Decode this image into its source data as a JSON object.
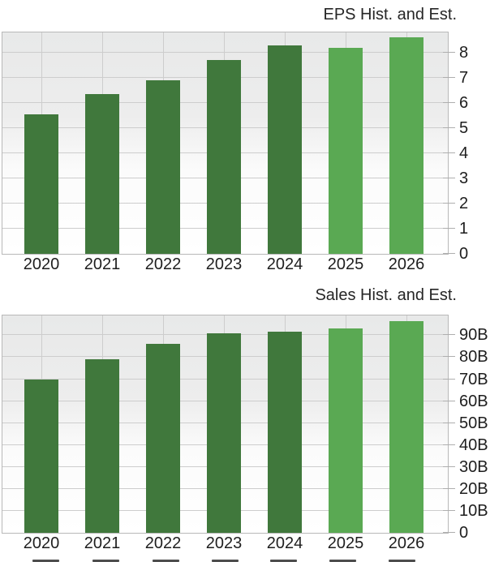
{
  "chart_data": [
    {
      "type": "bar",
      "title": "EPS Hist. and Est.",
      "categories": [
        "2020",
        "2021",
        "2022",
        "2023",
        "2024",
        "2025",
        "2026"
      ],
      "values": [
        5.55,
        6.35,
        6.9,
        7.7,
        8.3,
        8.2,
        8.6
      ],
      "segments": [
        "historical",
        "historical",
        "historical",
        "historical",
        "historical",
        "estimate",
        "estimate"
      ],
      "xlabel": "",
      "ylabel": "",
      "ylim": [
        0,
        8.8
      ],
      "yticks": [
        0,
        1,
        2,
        3,
        4,
        5,
        6,
        7,
        8
      ],
      "ytick_labels": [
        "0",
        "1",
        "2",
        "3",
        "4",
        "5",
        "6",
        "7",
        "8"
      ],
      "grid": true,
      "y_axis_side": "right",
      "legend": "none"
    },
    {
      "type": "bar",
      "title": "Sales Hist. and Est.",
      "categories": [
        "2020",
        "2021",
        "2022",
        "2023",
        "2024",
        "2025",
        "2026"
      ],
      "values": [
        70,
        79,
        86,
        91,
        91.5,
        93,
        96.5
      ],
      "segments": [
        "historical",
        "historical",
        "historical",
        "historical",
        "historical",
        "estimate",
        "estimate"
      ],
      "xlabel": "",
      "ylabel": "",
      "ylim": [
        0,
        99
      ],
      "yticks": [
        0,
        10,
        20,
        30,
        40,
        50,
        60,
        70,
        80,
        90
      ],
      "ytick_labels": [
        "0",
        "10B",
        "20B",
        "30B",
        "40B",
        "50B",
        "60B",
        "70B",
        "80B",
        "90B"
      ],
      "grid": true,
      "y_axis_side": "right",
      "legend": "none"
    }
  ],
  "colors": {
    "historical_bar": "#40783c",
    "estimate_bar": "#5aa953",
    "gridline": "#cdcdcd",
    "plot_border": "#b8b8b8",
    "tick": "#aeaeae",
    "title_text": "#262626",
    "label_text": "#1e1e1e",
    "cutoff_mark": "#4d4d4d"
  },
  "bottom_cutoff_marks": {
    "count": 7,
    "color": "#4d4d4d"
  }
}
